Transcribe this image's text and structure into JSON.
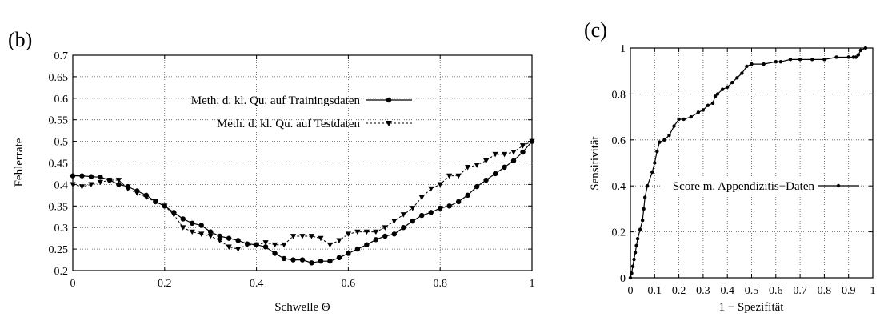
{
  "chart_data": [
    {
      "type": "line",
      "panel_label": "(b)",
      "xlabel": "Schwelle Θ",
      "ylabel": "Fehlerrate",
      "xlim": [
        0,
        1
      ],
      "ylim": [
        0.2,
        0.7
      ],
      "xticks": [
        "0",
        "0.2",
        "0.4",
        "0.6",
        "0.8",
        "1"
      ],
      "xtick_values": [
        0,
        0.2,
        0.4,
        0.6,
        0.8,
        1
      ],
      "yticks": [
        "0.2",
        "0.25",
        "0.3",
        "0.35",
        "0.4",
        "0.45",
        "0.5",
        "0.55",
        "0.6",
        "0.65",
        "0.7"
      ],
      "ytick_values": [
        0.2,
        0.25,
        0.3,
        0.35,
        0.4,
        0.45,
        0.5,
        0.55,
        0.6,
        0.65,
        0.7
      ],
      "grid": true,
      "legend_position": "upper-middle",
      "series": [
        {
          "name": "Meth. d. kl. Qu. auf Trainingsdaten",
          "marker": "circle",
          "dash": "solid",
          "x": [
            0,
            0.02,
            0.04,
            0.06,
            0.08,
            0.1,
            0.12,
            0.14,
            0.16,
            0.18,
            0.2,
            0.22,
            0.24,
            0.26,
            0.28,
            0.3,
            0.32,
            0.34,
            0.36,
            0.38,
            0.4,
            0.42,
            0.44,
            0.46,
            0.48,
            0.5,
            0.52,
            0.54,
            0.56,
            0.58,
            0.6,
            0.62,
            0.64,
            0.66,
            0.68,
            0.7,
            0.72,
            0.74,
            0.76,
            0.78,
            0.8,
            0.82,
            0.84,
            0.86,
            0.88,
            0.9,
            0.92,
            0.94,
            0.96,
            0.98,
            1.0
          ],
          "y": [
            0.42,
            0.42,
            0.418,
            0.417,
            0.41,
            0.4,
            0.395,
            0.385,
            0.375,
            0.36,
            0.35,
            0.335,
            0.32,
            0.31,
            0.305,
            0.29,
            0.28,
            0.275,
            0.27,
            0.262,
            0.26,
            0.255,
            0.24,
            0.228,
            0.225,
            0.225,
            0.218,
            0.222,
            0.222,
            0.23,
            0.24,
            0.25,
            0.26,
            0.272,
            0.28,
            0.285,
            0.3,
            0.315,
            0.328,
            0.335,
            0.345,
            0.35,
            0.36,
            0.375,
            0.395,
            0.41,
            0.425,
            0.44,
            0.455,
            0.475,
            0.5
          ]
        },
        {
          "name": "Meth. d. kl. Qu. auf Testdaten",
          "marker": "triangle-down",
          "dash": "dashed",
          "x": [
            0,
            0.02,
            0.04,
            0.06,
            0.08,
            0.1,
            0.12,
            0.14,
            0.16,
            0.18,
            0.2,
            0.22,
            0.24,
            0.26,
            0.28,
            0.3,
            0.32,
            0.34,
            0.36,
            0.38,
            0.4,
            0.42,
            0.44,
            0.46,
            0.48,
            0.5,
            0.52,
            0.54,
            0.56,
            0.58,
            0.6,
            0.62,
            0.64,
            0.66,
            0.68,
            0.7,
            0.72,
            0.74,
            0.76,
            0.78,
            0.8,
            0.82,
            0.84,
            0.86,
            0.88,
            0.9,
            0.92,
            0.94,
            0.96,
            0.98,
            1.0
          ],
          "y": [
            0.4,
            0.395,
            0.4,
            0.405,
            0.41,
            0.41,
            0.39,
            0.38,
            0.37,
            0.36,
            0.35,
            0.33,
            0.3,
            0.29,
            0.285,
            0.28,
            0.27,
            0.255,
            0.25,
            0.26,
            0.26,
            0.265,
            0.26,
            0.26,
            0.28,
            0.28,
            0.28,
            0.275,
            0.26,
            0.27,
            0.285,
            0.29,
            0.29,
            0.29,
            0.3,
            0.315,
            0.33,
            0.345,
            0.37,
            0.39,
            0.4,
            0.42,
            0.42,
            0.44,
            0.445,
            0.455,
            0.47,
            0.47,
            0.475,
            0.49,
            0.5
          ]
        }
      ]
    },
    {
      "type": "line",
      "panel_label": "(c)",
      "xlabel": "1 − Spezifität",
      "ylabel": "Sensitivität",
      "xlim": [
        0,
        1
      ],
      "ylim": [
        0,
        1
      ],
      "xticks": [
        "0",
        "0.1",
        "0.2",
        "0.3",
        "0.4",
        "0.5",
        "0.6",
        "0.7",
        "0.8",
        "0.9",
        "1"
      ],
      "xtick_values": [
        0,
        0.1,
        0.2,
        0.3,
        0.4,
        0.5,
        0.6,
        0.7,
        0.8,
        0.9,
        1
      ],
      "yticks": [
        "0",
        "0.2",
        "0.4",
        "0.6",
        "0.8",
        "1"
      ],
      "ytick_values": [
        0,
        0.2,
        0.4,
        0.6,
        0.8,
        1
      ],
      "grid": true,
      "legend_position": "middle-right",
      "series": [
        {
          "name": "Score m. Appendizitis−Daten",
          "marker": "small-circle",
          "dash": "solid",
          "x": [
            0,
            0.005,
            0.01,
            0.015,
            0.02,
            0.025,
            0.03,
            0.04,
            0.05,
            0.055,
            0.06,
            0.07,
            0.09,
            0.1,
            0.11,
            0.12,
            0.14,
            0.16,
            0.18,
            0.2,
            0.22,
            0.25,
            0.28,
            0.3,
            0.32,
            0.34,
            0.35,
            0.36,
            0.38,
            0.4,
            0.42,
            0.44,
            0.46,
            0.48,
            0.5,
            0.55,
            0.6,
            0.62,
            0.66,
            0.7,
            0.75,
            0.8,
            0.85,
            0.9,
            0.92,
            0.93,
            0.94,
            0.95,
            0.97
          ],
          "y": [
            0,
            0.02,
            0.05,
            0.08,
            0.11,
            0.14,
            0.17,
            0.21,
            0.25,
            0.3,
            0.35,
            0.4,
            0.46,
            0.5,
            0.55,
            0.59,
            0.6,
            0.62,
            0.66,
            0.69,
            0.69,
            0.7,
            0.72,
            0.73,
            0.75,
            0.76,
            0.79,
            0.8,
            0.82,
            0.83,
            0.85,
            0.87,
            0.89,
            0.92,
            0.93,
            0.93,
            0.94,
            0.94,
            0.95,
            0.95,
            0.95,
            0.95,
            0.96,
            0.96,
            0.96,
            0.96,
            0.97,
            0.99,
            1.0
          ]
        }
      ]
    }
  ]
}
